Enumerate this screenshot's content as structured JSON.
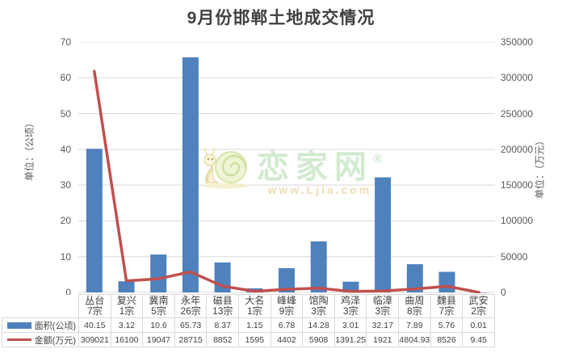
{
  "title": "9月份邯郸土地成交情况",
  "axes": {
    "left": {
      "title": "单位：（公顷）",
      "ticks": [
        "0",
        "10",
        "20",
        "30",
        "40",
        "50",
        "60",
        "70"
      ],
      "max": 70
    },
    "right": {
      "title": "单位：（万元）",
      "ticks": [
        "0",
        "50000",
        "100000",
        "150000",
        "200000",
        "250000",
        "300000",
        "350000"
      ],
      "max": 350000
    }
  },
  "watermark": {
    "brand": "恋家网",
    "registered": "®",
    "url": "www.Ljia.com",
    "logo": "snail-logo"
  },
  "colors": {
    "bar": "#4f81bd",
    "line": "#c0504d",
    "gridline": "#d9d9d9",
    "axis_text": "#595959",
    "title_text": "#404040",
    "table_border": "#d9d9d9"
  },
  "chart_data": {
    "type": "bar+line",
    "title": "9月份邯郸土地成交情况",
    "grid": true,
    "legend_position": "table-left",
    "left_ylim": [
      0,
      70
    ],
    "right_ylim": [
      0,
      350000
    ],
    "categories": [
      {
        "name": "丛台",
        "lots": "7宗"
      },
      {
        "name": "复兴",
        "lots": "1宗"
      },
      {
        "name": "冀南",
        "lots": "5宗"
      },
      {
        "name": "永年",
        "lots": "26宗"
      },
      {
        "name": "磁县",
        "lots": "13宗"
      },
      {
        "name": "大名",
        "lots": "1宗"
      },
      {
        "name": "峰峰",
        "lots": "9宗"
      },
      {
        "name": "馆陶",
        "lots": "3宗"
      },
      {
        "name": "鸡泽",
        "lots": "3宗"
      },
      {
        "name": "临漳",
        "lots": "3宗"
      },
      {
        "name": "曲周",
        "lots": "8宗"
      },
      {
        "name": "魏县",
        "lots": "7宗"
      },
      {
        "name": "武安",
        "lots": "2宗"
      }
    ],
    "series": [
      {
        "name": "面积(公顷)",
        "type": "bar",
        "axis": "left",
        "color": "#4f81bd",
        "values": [
          40.15,
          3.12,
          10.6,
          65.73,
          8.37,
          1.15,
          6.78,
          14.28,
          3.01,
          32.17,
          7.89,
          5.76,
          0.01
        ]
      },
      {
        "name": "金额(万元)",
        "type": "line",
        "axis": "right",
        "color": "#c0504d",
        "values": [
          309021,
          16100,
          19047,
          28715,
          8852,
          1595,
          4402,
          5908,
          1391.25,
          1921,
          4804.93,
          8526,
          9.45
        ]
      }
    ]
  }
}
